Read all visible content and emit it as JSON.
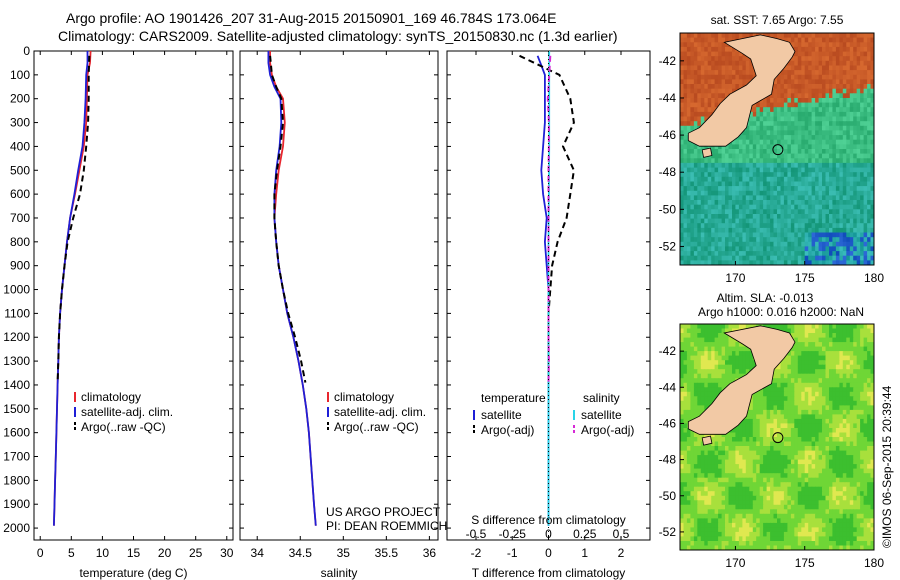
{
  "header": {
    "line1": "Argo profile: AO 1901426_207 31-Aug-2015 20150901_169 46.784S 173.064E",
    "line2": "Climatology: CARS2009. Satellite-adjusted climatology: synTS_20150830.nc (1.3d earlier)"
  },
  "chart_data": [
    {
      "id": "temperature",
      "type": "line",
      "xlabel": "temperature (deg C)",
      "ylabel": "",
      "xlim": [
        -1,
        31
      ],
      "ylim": [
        2050,
        0
      ],
      "xticks": [
        0,
        5,
        10,
        15,
        20,
        25,
        30
      ],
      "yticks": [
        0,
        100,
        200,
        300,
        400,
        500,
        600,
        700,
        800,
        900,
        1000,
        1100,
        1200,
        1300,
        1400,
        1500,
        1600,
        1700,
        1800,
        1900,
        2000
      ],
      "legend": {
        "position": "lower-middle",
        "entries": [
          "climatology",
          "satellite-adj. clim.",
          "Argo(..raw -QC)"
        ]
      },
      "series": [
        {
          "name": "climatology",
          "color": "#e8262e",
          "dash": "solid",
          "points": [
            [
              8.1,
              0
            ],
            [
              8.0,
              50
            ],
            [
              7.6,
              100
            ],
            [
              7.5,
              200
            ],
            [
              7.4,
              300
            ],
            [
              7.0,
              400
            ],
            [
              6.3,
              500
            ],
            [
              5.6,
              600
            ],
            [
              4.8,
              700
            ],
            [
              4.3,
              800
            ],
            [
              3.9,
              900
            ],
            [
              3.5,
              1000
            ],
            [
              3.2,
              1100
            ],
            [
              3.0,
              1200
            ],
            [
              2.9,
              1300
            ],
            [
              2.8,
              1400
            ],
            [
              2.7,
              1500
            ],
            [
              2.6,
              1600
            ],
            [
              2.5,
              1700
            ],
            [
              2.4,
              1800
            ],
            [
              2.3,
              1900
            ],
            [
              2.2,
              1990
            ]
          ]
        },
        {
          "name": "satellite-adj. clim.",
          "color": "#1f1fd6",
          "dash": "solid",
          "points": [
            [
              7.6,
              0
            ],
            [
              7.6,
              50
            ],
            [
              7.4,
              100
            ],
            [
              7.3,
              200
            ],
            [
              7.1,
              300
            ],
            [
              6.8,
              400
            ],
            [
              6.1,
              500
            ],
            [
              5.5,
              600
            ],
            [
              4.8,
              700
            ],
            [
              4.3,
              800
            ],
            [
              3.9,
              900
            ],
            [
              3.5,
              1000
            ],
            [
              3.2,
              1100
            ],
            [
              3.0,
              1200
            ],
            [
              2.9,
              1300
            ],
            [
              2.8,
              1400
            ],
            [
              2.7,
              1500
            ],
            [
              2.6,
              1600
            ],
            [
              2.5,
              1700
            ],
            [
              2.4,
              1800
            ],
            [
              2.3,
              1900
            ],
            [
              2.2,
              1990
            ]
          ]
        },
        {
          "name": "Argo(..raw -QC)",
          "color": "#000000",
          "dash": "dashed",
          "points": [
            [
              7.9,
              20
            ],
            [
              7.8,
              100
            ],
            [
              7.8,
              200
            ],
            [
              7.7,
              300
            ],
            [
              7.4,
              400
            ],
            [
              7.0,
              500
            ],
            [
              6.4,
              600
            ],
            [
              5.3,
              700
            ],
            [
              4.4,
              800
            ],
            [
              3.9,
              900
            ],
            [
              3.5,
              1000
            ],
            [
              3.2,
              1100
            ],
            [
              3.0,
              1200
            ],
            [
              2.9,
              1300
            ],
            [
              2.8,
              1390
            ]
          ]
        }
      ]
    },
    {
      "id": "salinity",
      "type": "line",
      "xlabel": "salinity",
      "ylabel": "",
      "xlim": [
        33.8,
        36.1
      ],
      "ylim": [
        2050,
        0
      ],
      "xticks": [
        34,
        34.5,
        35,
        35.5,
        36
      ],
      "legend": {
        "position": "lower-right",
        "entries": [
          "climatology",
          "satellite-adj. clim.",
          "Argo(..raw -QC)"
        ]
      },
      "annotations": [
        "US ARGO PROJECT",
        "PI: DEAN ROEMMICH"
      ],
      "series": [
        {
          "name": "climatology",
          "color": "#e8262e",
          "dash": "solid",
          "points": [
            [
              34.15,
              0
            ],
            [
              34.15,
              50
            ],
            [
              34.17,
              100
            ],
            [
              34.22,
              150
            ],
            [
              34.3,
              200
            ],
            [
              34.32,
              300
            ],
            [
              34.3,
              400
            ],
            [
              34.25,
              500
            ],
            [
              34.22,
              600
            ],
            [
              34.2,
              700
            ],
            [
              34.22,
              800
            ],
            [
              34.25,
              900
            ],
            [
              34.3,
              1000
            ],
            [
              34.35,
              1100
            ],
            [
              34.42,
              1200
            ],
            [
              34.48,
              1300
            ],
            [
              34.53,
              1400
            ],
            [
              34.57,
              1500
            ],
            [
              34.6,
              1600
            ],
            [
              34.62,
              1700
            ],
            [
              34.64,
              1800
            ],
            [
              34.66,
              1900
            ],
            [
              34.68,
              1990
            ]
          ]
        },
        {
          "name": "satellite-adj. clim.",
          "color": "#1f1fd6",
          "dash": "solid",
          "points": [
            [
              34.13,
              0
            ],
            [
              34.13,
              50
            ],
            [
              34.15,
              100
            ],
            [
              34.2,
              150
            ],
            [
              34.27,
              200
            ],
            [
              34.28,
              300
            ],
            [
              34.26,
              400
            ],
            [
              34.22,
              500
            ],
            [
              34.2,
              600
            ],
            [
              34.2,
              700
            ],
            [
              34.22,
              800
            ],
            [
              34.25,
              900
            ],
            [
              34.3,
              1000
            ],
            [
              34.35,
              1100
            ],
            [
              34.42,
              1200
            ],
            [
              34.48,
              1300
            ],
            [
              34.53,
              1400
            ],
            [
              34.57,
              1500
            ],
            [
              34.6,
              1600
            ],
            [
              34.62,
              1700
            ],
            [
              34.64,
              1800
            ],
            [
              34.66,
              1900
            ],
            [
              34.68,
              1990
            ]
          ]
        },
        {
          "name": "Argo(..raw -QC)",
          "color": "#000000",
          "dash": "dashed",
          "points": [
            [
              34.15,
              20
            ],
            [
              34.17,
              100
            ],
            [
              34.22,
              150
            ],
            [
              34.28,
              200
            ],
            [
              34.3,
              300
            ],
            [
              34.27,
              400
            ],
            [
              34.23,
              500
            ],
            [
              34.2,
              600
            ],
            [
              34.2,
              700
            ],
            [
              34.22,
              800
            ],
            [
              34.25,
              900
            ],
            [
              34.3,
              1000
            ],
            [
              34.36,
              1100
            ],
            [
              34.44,
              1200
            ],
            [
              34.51,
              1300
            ],
            [
              34.56,
              1390
            ]
          ]
        }
      ]
    },
    {
      "id": "difference",
      "type": "line",
      "xlabel": "T difference from climatology",
      "xlabel2": "S difference from climatology",
      "ylabel": "",
      "xlim": [
        -2.8,
        2.8
      ],
      "ylim": [
        2050,
        0
      ],
      "xticks": [
        -2,
        -1,
        0,
        1,
        2
      ],
      "xticks2": [
        -0.5,
        -0.25,
        0,
        0.25,
        0.5
      ],
      "xticks2_labels": [
        "-0.5",
        "-0.25",
        "0",
        "0.25",
        "0.5"
      ],
      "legend": {
        "position": "lower-middle",
        "groups": [
          "temperature",
          "salinity"
        ],
        "entries": [
          "satellite",
          "Argo(-adj)",
          "satellite",
          "Argo(-adj)"
        ]
      },
      "series": [
        {
          "name": "satellite",
          "group": "temperature",
          "color": "#1f1fd6",
          "dash": "solid",
          "points": [
            [
              -0.3,
              20
            ],
            [
              -0.2,
              60
            ],
            [
              -0.1,
              100
            ],
            [
              -0.1,
              200
            ],
            [
              -0.1,
              300
            ],
            [
              -0.15,
              400
            ],
            [
              -0.2,
              500
            ],
            [
              -0.15,
              600
            ],
            [
              -0.05,
              700
            ],
            [
              -0.1,
              800
            ],
            [
              -0.05,
              900
            ],
            [
              0,
              1000
            ],
            [
              0,
              1200
            ],
            [
              0,
              1500
            ],
            [
              0,
              1990
            ]
          ]
        },
        {
          "name": "Argo(-adj)",
          "group": "temperature",
          "color": "#000000",
          "dash": "dashed",
          "points": [
            [
              -0.8,
              20
            ],
            [
              0.3,
              100
            ],
            [
              0.6,
              200
            ],
            [
              0.7,
              300
            ],
            [
              0.4,
              400
            ],
            [
              0.7,
              500
            ],
            [
              0.6,
              600
            ],
            [
              0.5,
              700
            ],
            [
              0.25,
              800
            ],
            [
              0.1,
              900
            ],
            [
              0.05,
              1000
            ],
            [
              0,
              1100
            ],
            [
              0,
              1200
            ],
            [
              0,
              1300
            ],
            [
              0,
              1390
            ]
          ]
        },
        {
          "name": "satellite",
          "group": "salinity",
          "color": "#29d4e8",
          "dash": "solid",
          "points": [
            [
              0.02,
              0
            ],
            [
              0.02,
              50
            ],
            [
              0.02,
              100
            ],
            [
              0.02,
              200
            ],
            [
              0.02,
              300
            ],
            [
              0.02,
              400
            ],
            [
              0.01,
              600
            ],
            [
              0,
              800
            ],
            [
              0,
              1000
            ],
            [
              0,
              1200
            ],
            [
              0,
              1500
            ],
            [
              0,
              1990
            ]
          ]
        },
        {
          "name": "Argo(-adj)",
          "group": "salinity",
          "color": "#d62ad6",
          "dash": "dashed",
          "points": [
            [
              0.05,
              20
            ],
            [
              0.02,
              100
            ],
            [
              -0.02,
              200
            ],
            [
              0.01,
              300
            ],
            [
              0.01,
              400
            ],
            [
              0,
              500
            ],
            [
              0,
              600
            ],
            [
              0,
              800
            ],
            [
              0,
              1000
            ],
            [
              0,
              1200
            ],
            [
              0.01,
              1300
            ],
            [
              0,
              1390
            ]
          ]
        }
      ]
    },
    {
      "id": "sst-map",
      "type": "heatmap",
      "title": "sat. SST: 7.65 Argo: 7.55",
      "xlim": [
        166,
        180
      ],
      "ylim": [
        -53,
        -40.5
      ],
      "xticks": [
        170,
        175,
        180
      ],
      "yticks": [
        -42,
        -44,
        -46,
        -48,
        -50,
        -52
      ],
      "profile_location": [
        173.064,
        -46.784
      ]
    },
    {
      "id": "sla-map",
      "type": "heatmap",
      "title": "Altim. SLA: -0.013",
      "subtitle": "Argo h1000: 0.016 h2000: NaN",
      "xlim": [
        166,
        180
      ],
      "ylim": [
        -53,
        -40.5
      ],
      "xticks": [
        170,
        175,
        180
      ],
      "yticks": [
        -42,
        -44,
        -46,
        -48,
        -50,
        -52
      ],
      "profile_location": [
        173.064,
        -46.784
      ]
    }
  ],
  "footer": {
    "credit": "©IMOS 06-Sep-2015 20:39:44"
  }
}
